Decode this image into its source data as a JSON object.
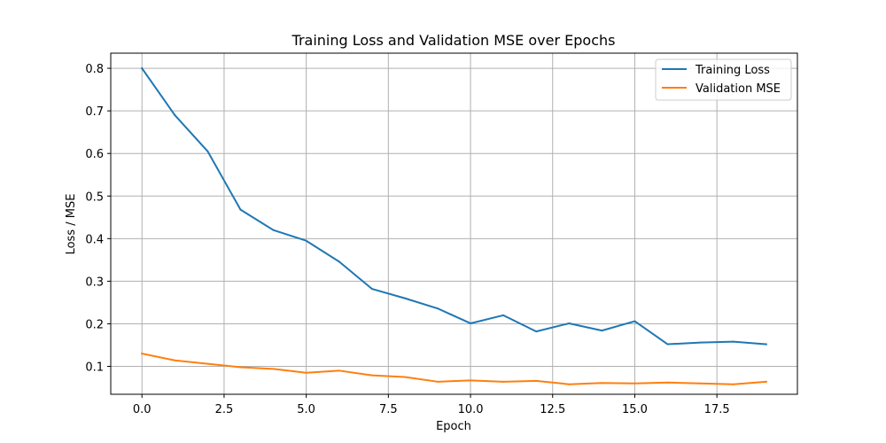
{
  "chart_data": {
    "type": "line",
    "title": "Training Loss and Validation MSE over Epochs",
    "xlabel": "Epoch",
    "ylabel": "Loss / MSE",
    "xlim": [
      -0.95,
      19.95
    ],
    "ylim": [
      0.0345,
      0.8355
    ],
    "x_ticks": [
      0.0,
      2.5,
      5.0,
      7.5,
      10.0,
      12.5,
      15.0,
      17.5
    ],
    "x_tick_labels": [
      "0.0",
      "2.5",
      "5.0",
      "7.5",
      "10.0",
      "12.5",
      "15.0",
      "17.5"
    ],
    "y_ticks": [
      0.1,
      0.2,
      0.3,
      0.4,
      0.5,
      0.6,
      0.7,
      0.8
    ],
    "y_tick_labels": [
      "0.1",
      "0.2",
      "0.3",
      "0.4",
      "0.5",
      "0.6",
      "0.7",
      "0.8"
    ],
    "grid": true,
    "legend_position": "top-right",
    "x": [
      0,
      1,
      2,
      3,
      4,
      5,
      6,
      7,
      8,
      9,
      10,
      11,
      12,
      13,
      14,
      15,
      16,
      17,
      18,
      19
    ],
    "series": [
      {
        "name": "Training Loss",
        "color": "#1f77b4",
        "values": [
          0.8,
          0.69,
          0.605,
          0.468,
          0.42,
          0.395,
          0.346,
          0.282,
          0.26,
          0.236,
          0.201,
          0.22,
          0.182,
          0.201,
          0.184,
          0.206,
          0.152,
          0.156,
          0.158,
          0.152
        ]
      },
      {
        "name": "Validation MSE",
        "color": "#ff7f0e",
        "values": [
          0.13,
          0.114,
          0.106,
          0.098,
          0.094,
          0.085,
          0.09,
          0.079,
          0.075,
          0.064,
          0.067,
          0.064,
          0.066,
          0.058,
          0.061,
          0.06,
          0.062,
          0.06,
          0.058,
          0.064
        ]
      }
    ]
  }
}
